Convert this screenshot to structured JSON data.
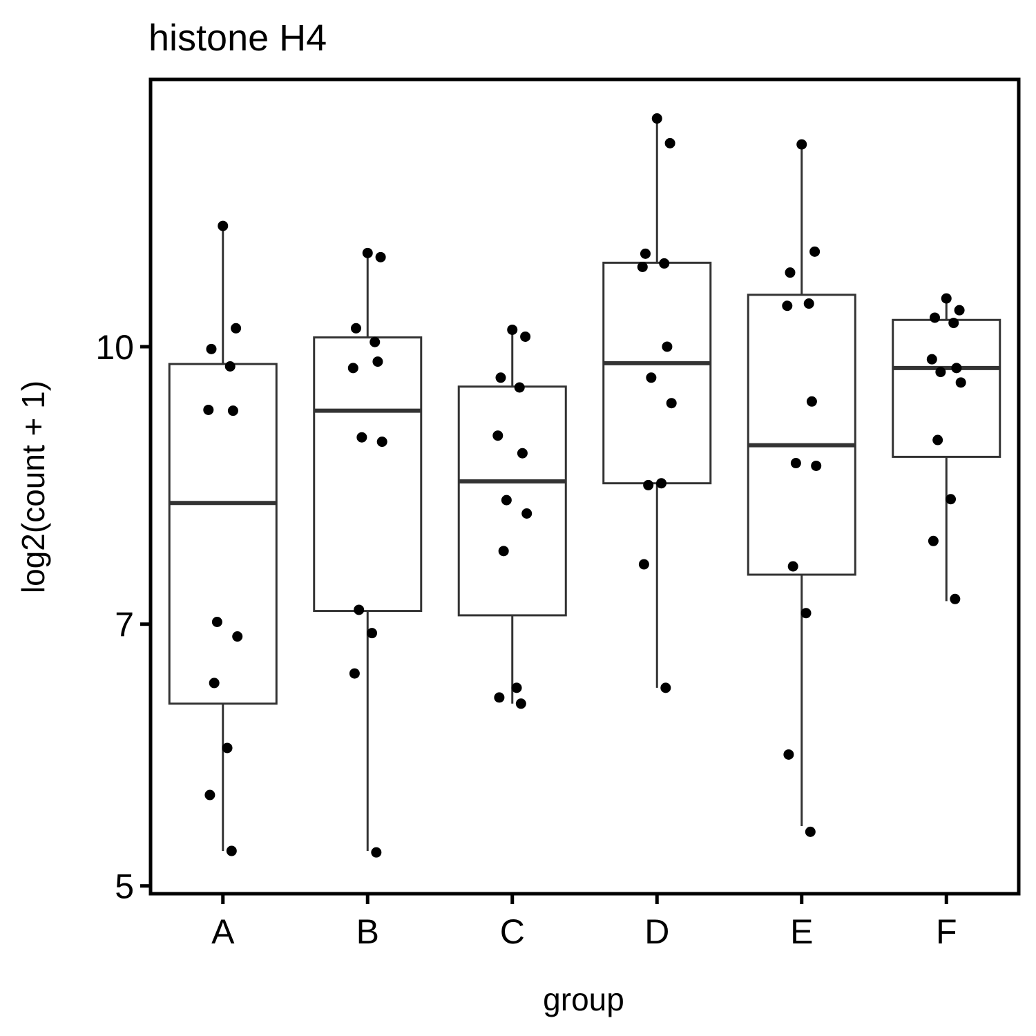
{
  "chart_data": {
    "type": "boxplot",
    "title": "histone H4",
    "xlabel": "group",
    "ylabel": "log2(count + 1)",
    "y_scale": "log",
    "y_ticks": [
      5,
      7,
      10
    ],
    "ylim": [
      4.95,
      14.1
    ],
    "grid": false,
    "legend": "none",
    "categories": [
      "A",
      "B",
      "C",
      "D",
      "E",
      "F"
    ],
    "boxes": [
      {
        "group": "A",
        "whisker_low": 5.23,
        "q1": 6.32,
        "median": 8.18,
        "q3": 9.78,
        "whisker_high": 11.7
      },
      {
        "group": "B",
        "whisker_low": 5.23,
        "q1": 7.12,
        "median": 9.21,
        "q3": 10.12,
        "whisker_high": 11.24
      },
      {
        "group": "C",
        "whisker_low": 6.32,
        "q1": 7.08,
        "median": 8.41,
        "q3": 9.5,
        "whisker_high": 10.22
      },
      {
        "group": "D",
        "whisker_low": 6.45,
        "q1": 8.39,
        "median": 9.79,
        "q3": 11.14,
        "whisker_high": 13.4
      },
      {
        "group": "E",
        "whisker_low": 5.4,
        "q1": 7.46,
        "median": 8.81,
        "q3": 10.69,
        "whisker_high": 12.96
      },
      {
        "group": "F",
        "whisker_low": 7.21,
        "q1": 8.68,
        "median": 9.73,
        "q3": 10.35,
        "whisker_high": 10.64
      }
    ],
    "points": [
      {
        "group": "A",
        "values": [
          11.68,
          10.24,
          9.97,
          9.75,
          9.22,
          9.21,
          7.02,
          6.89,
          6.49,
          5.97,
          5.62,
          5.23
        ]
      },
      {
        "group": "B",
        "values": [
          11.28,
          11.22,
          10.24,
          10.06,
          9.73,
          9.81,
          8.9,
          8.85,
          7.13,
          6.92,
          6.57,
          5.22
        ]
      },
      {
        "group": "C",
        "values": [
          10.22,
          10.13,
          9.61,
          9.49,
          8.92,
          8.72,
          8.21,
          8.07,
          7.69,
          6.45,
          6.37,
          6.32
        ]
      },
      {
        "group": "D",
        "values": [
          13.41,
          12.99,
          11.27,
          11.13,
          11.08,
          10.0,
          9.61,
          9.3,
          8.37,
          8.39,
          7.56,
          6.45
        ]
      },
      {
        "group": "E",
        "values": [
          12.97,
          11.3,
          11.0,
          10.57,
          10.54,
          9.32,
          8.61,
          8.58,
          7.54,
          7.1,
          5.92,
          5.36
        ]
      },
      {
        "group": "F",
        "values": [
          10.64,
          10.48,
          10.38,
          10.31,
          9.84,
          9.73,
          9.68,
          9.55,
          8.87,
          8.22,
          7.79,
          7.23
        ]
      }
    ]
  }
}
